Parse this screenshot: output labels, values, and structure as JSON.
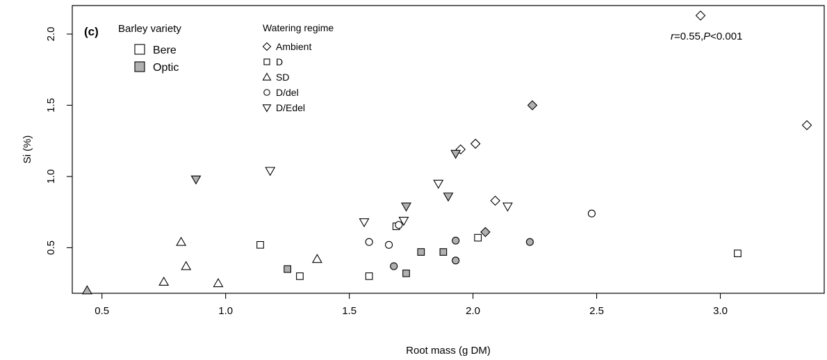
{
  "chart_data": {
    "type": "scatter",
    "panel_label": "(c)",
    "xlabel": "Root mass (g DM)",
    "ylabel": "Si (%)",
    "xlim": [
      0.38,
      3.42
    ],
    "ylim": [
      0.18,
      2.2
    ],
    "xticks": [
      0.5,
      1.0,
      1.5,
      2.0,
      2.5,
      3.0
    ],
    "xtick_labels": [
      "0.5",
      "1.0",
      "1.5",
      "2.0",
      "2.5",
      "3.0"
    ],
    "yticks": [
      0.5,
      1.0,
      1.5,
      2.0
    ],
    "ytick_labels": [
      "0.5",
      "1.0",
      "1.5",
      "2.0"
    ],
    "annotation": {
      "r_label": "r",
      "r_value": "=0.55,",
      "p_label": "P",
      "p_value": "<0.001"
    },
    "legend_variety": {
      "title": "Barley variety",
      "entries": [
        {
          "label": "Bere",
          "fill": "#ffffff"
        },
        {
          "label": "Optic",
          "fill": "#b0b0b0"
        }
      ]
    },
    "legend_regime": {
      "title": "Watering regime",
      "entries": [
        {
          "label": "Ambient",
          "shape": "diamond"
        },
        {
          "label": "D",
          "shape": "square"
        },
        {
          "label": "SD",
          "shape": "triangle-up"
        },
        {
          "label": "D/del",
          "shape": "circle"
        },
        {
          "label": "D/Edel",
          "shape": "triangle-down"
        }
      ]
    },
    "variety_colors": {
      "Bere": "#ffffff",
      "Optic": "#b0b0b0"
    },
    "series": [
      {
        "regime": "Ambient",
        "shape": "diamond",
        "variety": "Bere",
        "points": [
          [
            2.92,
            2.13
          ],
          [
            3.35,
            1.36
          ],
          [
            2.01,
            1.23
          ],
          [
            1.95,
            1.19
          ],
          [
            2.09,
            0.83
          ]
        ]
      },
      {
        "regime": "Ambient",
        "shape": "diamond",
        "variety": "Optic",
        "points": [
          [
            2.24,
            1.5
          ],
          [
            2.05,
            0.61
          ]
        ]
      },
      {
        "regime": "D",
        "shape": "square",
        "variety": "Bere",
        "points": [
          [
            1.14,
            0.52
          ],
          [
            1.3,
            0.3
          ],
          [
            1.58,
            0.3
          ],
          [
            1.69,
            0.65
          ],
          [
            2.02,
            0.57
          ],
          [
            3.07,
            0.46
          ]
        ]
      },
      {
        "regime": "D",
        "shape": "square",
        "variety": "Optic",
        "points": [
          [
            1.25,
            0.35
          ],
          [
            1.73,
            0.32
          ],
          [
            1.79,
            0.47
          ],
          [
            1.88,
            0.47
          ]
        ]
      },
      {
        "regime": "SD",
        "shape": "triangle-up",
        "variety": "Bere",
        "points": [
          [
            0.82,
            0.54
          ],
          [
            0.84,
            0.37
          ],
          [
            1.37,
            0.42
          ],
          [
            0.97,
            0.25
          ],
          [
            0.75,
            0.26
          ]
        ]
      },
      {
        "regime": "SD",
        "shape": "triangle-up",
        "variety": "Optic",
        "points": [
          [
            0.44,
            0.2
          ]
        ]
      },
      {
        "regime": "D/del",
        "shape": "circle",
        "variety": "Bere",
        "points": [
          [
            1.58,
            0.54
          ],
          [
            1.66,
            0.52
          ],
          [
            1.7,
            0.66
          ],
          [
            2.48,
            0.74
          ]
        ]
      },
      {
        "regime": "D/del",
        "shape": "circle",
        "variety": "Optic",
        "points": [
          [
            1.68,
            0.37
          ],
          [
            1.93,
            0.55
          ],
          [
            1.93,
            0.41
          ],
          [
            2.23,
            0.54
          ]
        ]
      },
      {
        "regime": "D/Edel",
        "shape": "triangle-down",
        "variety": "Bere",
        "points": [
          [
            1.18,
            1.04
          ],
          [
            1.56,
            0.68
          ],
          [
            1.72,
            0.69
          ],
          [
            1.86,
            0.95
          ],
          [
            2.14,
            0.79
          ]
        ]
      },
      {
        "regime": "D/Edel",
        "shape": "triangle-down",
        "variety": "Optic",
        "points": [
          [
            0.88,
            0.98
          ],
          [
            1.73,
            0.79
          ],
          [
            1.9,
            0.86
          ],
          [
            1.93,
            1.16
          ]
        ]
      }
    ]
  }
}
